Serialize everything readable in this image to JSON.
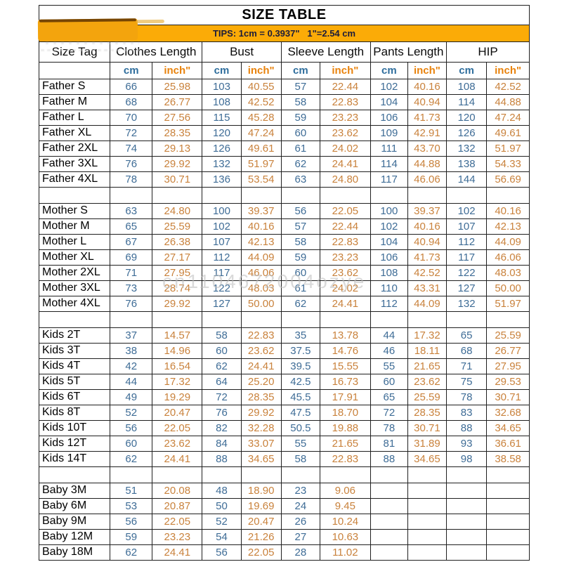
{
  "title": "SIZE TABLE",
  "tips": "TIPS: 1cm = 0.3937\"   1\"=2.54 cm",
  "watermark": "cn1104672004ozye",
  "colors": {
    "tips_bar": "#FBAB07",
    "cm_text": "#3E6C96",
    "inch_text": "#C9823C",
    "unit_cm_header": "#2F6E9D",
    "unit_inch_header": "#E8820C",
    "border": "#1F1F1F"
  },
  "columns": {
    "size_tag": "Size Tag",
    "unit_cm": "cm",
    "unit_inch": "inch\"",
    "groups": [
      {
        "label": "Clothes Length"
      },
      {
        "label": "Bust"
      },
      {
        "label": "Sleeve Length"
      },
      {
        "label": "Pants Length"
      },
      {
        "label": "HIP"
      }
    ]
  },
  "sections": [
    {
      "name": "Father",
      "separator_after": true,
      "rows": [
        {
          "tag": "Father S",
          "values": [
            "66",
            "25.98",
            "103",
            "40.55",
            "57",
            "22.44",
            "102",
            "40.16",
            "108",
            "42.52"
          ]
        },
        {
          "tag": "Father M",
          "values": [
            "68",
            "26.77",
            "108",
            "42.52",
            "58",
            "22.83",
            "104",
            "40.94",
            "114",
            "44.88"
          ]
        },
        {
          "tag": "Father L",
          "values": [
            "70",
            "27.56",
            "115",
            "45.28",
            "59",
            "23.23",
            "106",
            "41.73",
            "120",
            "47.24"
          ]
        },
        {
          "tag": "Father XL",
          "values": [
            "72",
            "28.35",
            "120",
            "47.24",
            "60",
            "23.62",
            "109",
            "42.91",
            "126",
            "49.61"
          ]
        },
        {
          "tag": "Father 2XL",
          "values": [
            "74",
            "29.13",
            "126",
            "49.61",
            "61",
            "24.02",
            "111",
            "43.70",
            "132",
            "51.97"
          ]
        },
        {
          "tag": "Father 3XL",
          "values": [
            "76",
            "29.92",
            "132",
            "51.97",
            "62",
            "24.41",
            "114",
            "44.88",
            "138",
            "54.33"
          ]
        },
        {
          "tag": "Father 4XL",
          "values": [
            "78",
            "30.71",
            "136",
            "53.54",
            "63",
            "24.80",
            "117",
            "46.06",
            "144",
            "56.69"
          ]
        }
      ]
    },
    {
      "name": "Mother",
      "separator_after": true,
      "rows": [
        {
          "tag": "Mother S",
          "values": [
            "63",
            "24.80",
            "100",
            "39.37",
            "56",
            "22.05",
            "100",
            "39.37",
            "102",
            "40.16"
          ]
        },
        {
          "tag": "Mother M",
          "values": [
            "65",
            "25.59",
            "102",
            "40.16",
            "57",
            "22.44",
            "102",
            "40.16",
            "107",
            "42.13"
          ]
        },
        {
          "tag": "Mother L",
          "values": [
            "67",
            "26.38",
            "107",
            "42.13",
            "58",
            "22.83",
            "104",
            "40.94",
            "112",
            "44.09"
          ]
        },
        {
          "tag": "Mother XL",
          "values": [
            "69",
            "27.17",
            "112",
            "44.09",
            "59",
            "23.23",
            "106",
            "41.73",
            "117",
            "46.06"
          ]
        },
        {
          "tag": "Mother 2XL",
          "values": [
            "71",
            "27.95",
            "117",
            "46.06",
            "60",
            "23.62",
            "108",
            "42.52",
            "122",
            "48.03"
          ]
        },
        {
          "tag": "Mother 3XL",
          "values": [
            "73",
            "28.74",
            "122",
            "48.03",
            "61",
            "24.02",
            "110",
            "43.31",
            "127",
            "50.00"
          ]
        },
        {
          "tag": "Mother 4XL",
          "values": [
            "76",
            "29.92",
            "127",
            "50.00",
            "62",
            "24.41",
            "112",
            "44.09",
            "132",
            "51.97"
          ]
        }
      ]
    },
    {
      "name": "Kids",
      "separator_after": true,
      "rows": [
        {
          "tag": "Kids 2T",
          "values": [
            "37",
            "14.57",
            "58",
            "22.83",
            "35",
            "13.78",
            "44",
            "17.32",
            "65",
            "25.59"
          ]
        },
        {
          "tag": "Kids 3T",
          "values": [
            "38",
            "14.96",
            "60",
            "23.62",
            "37.5",
            "14.76",
            "46",
            "18.11",
            "68",
            "26.77"
          ]
        },
        {
          "tag": "Kids 4T",
          "values": [
            "42",
            "16.54",
            "62",
            "24.41",
            "39.5",
            "15.55",
            "55",
            "21.65",
            "71",
            "27.95"
          ]
        },
        {
          "tag": "Kids 5T",
          "values": [
            "44",
            "17.32",
            "64",
            "25.20",
            "42.5",
            "16.73",
            "60",
            "23.62",
            "75",
            "29.53"
          ]
        },
        {
          "tag": "Kids 6T",
          "values": [
            "49",
            "19.29",
            "72",
            "28.35",
            "45.5",
            "17.91",
            "65",
            "25.59",
            "78",
            "30.71"
          ]
        },
        {
          "tag": "Kids 8T",
          "values": [
            "52",
            "20.47",
            "76",
            "29.92",
            "47.5",
            "18.70",
            "72",
            "28.35",
            "83",
            "32.68"
          ]
        },
        {
          "tag": "Kids 10T",
          "values": [
            "56",
            "22.05",
            "82",
            "32.28",
            "50.5",
            "19.88",
            "78",
            "30.71",
            "88",
            "34.65"
          ]
        },
        {
          "tag": "Kids 12T",
          "values": [
            "60",
            "23.62",
            "84",
            "33.07",
            "55",
            "21.65",
            "81",
            "31.89",
            "93",
            "36.61"
          ]
        },
        {
          "tag": "Kids 14T",
          "values": [
            "62",
            "24.41",
            "88",
            "34.65",
            "58",
            "22.83",
            "88",
            "34.65",
            "98",
            "38.58"
          ]
        }
      ]
    },
    {
      "name": "Baby",
      "separator_after": false,
      "rows": [
        {
          "tag": "Baby 3M",
          "values": [
            "51",
            "20.08",
            "48",
            "18.90",
            "23",
            "9.06",
            "",
            "",
            "",
            ""
          ]
        },
        {
          "tag": "Baby 6M",
          "values": [
            "53",
            "20.87",
            "50",
            "19.69",
            "24",
            "9.45",
            "",
            "",
            "",
            ""
          ]
        },
        {
          "tag": "Baby 9M",
          "values": [
            "56",
            "22.05",
            "52",
            "20.47",
            "26",
            "10.24",
            "",
            "",
            "",
            ""
          ]
        },
        {
          "tag": "Baby 12M",
          "values": [
            "59",
            "23.23",
            "54",
            "21.26",
            "27",
            "10.63",
            "",
            "",
            "",
            ""
          ]
        },
        {
          "tag": "Baby 18M",
          "values": [
            "62",
            "24.41",
            "56",
            "22.05",
            "28",
            "11.02",
            "",
            "",
            "",
            ""
          ]
        }
      ]
    }
  ]
}
